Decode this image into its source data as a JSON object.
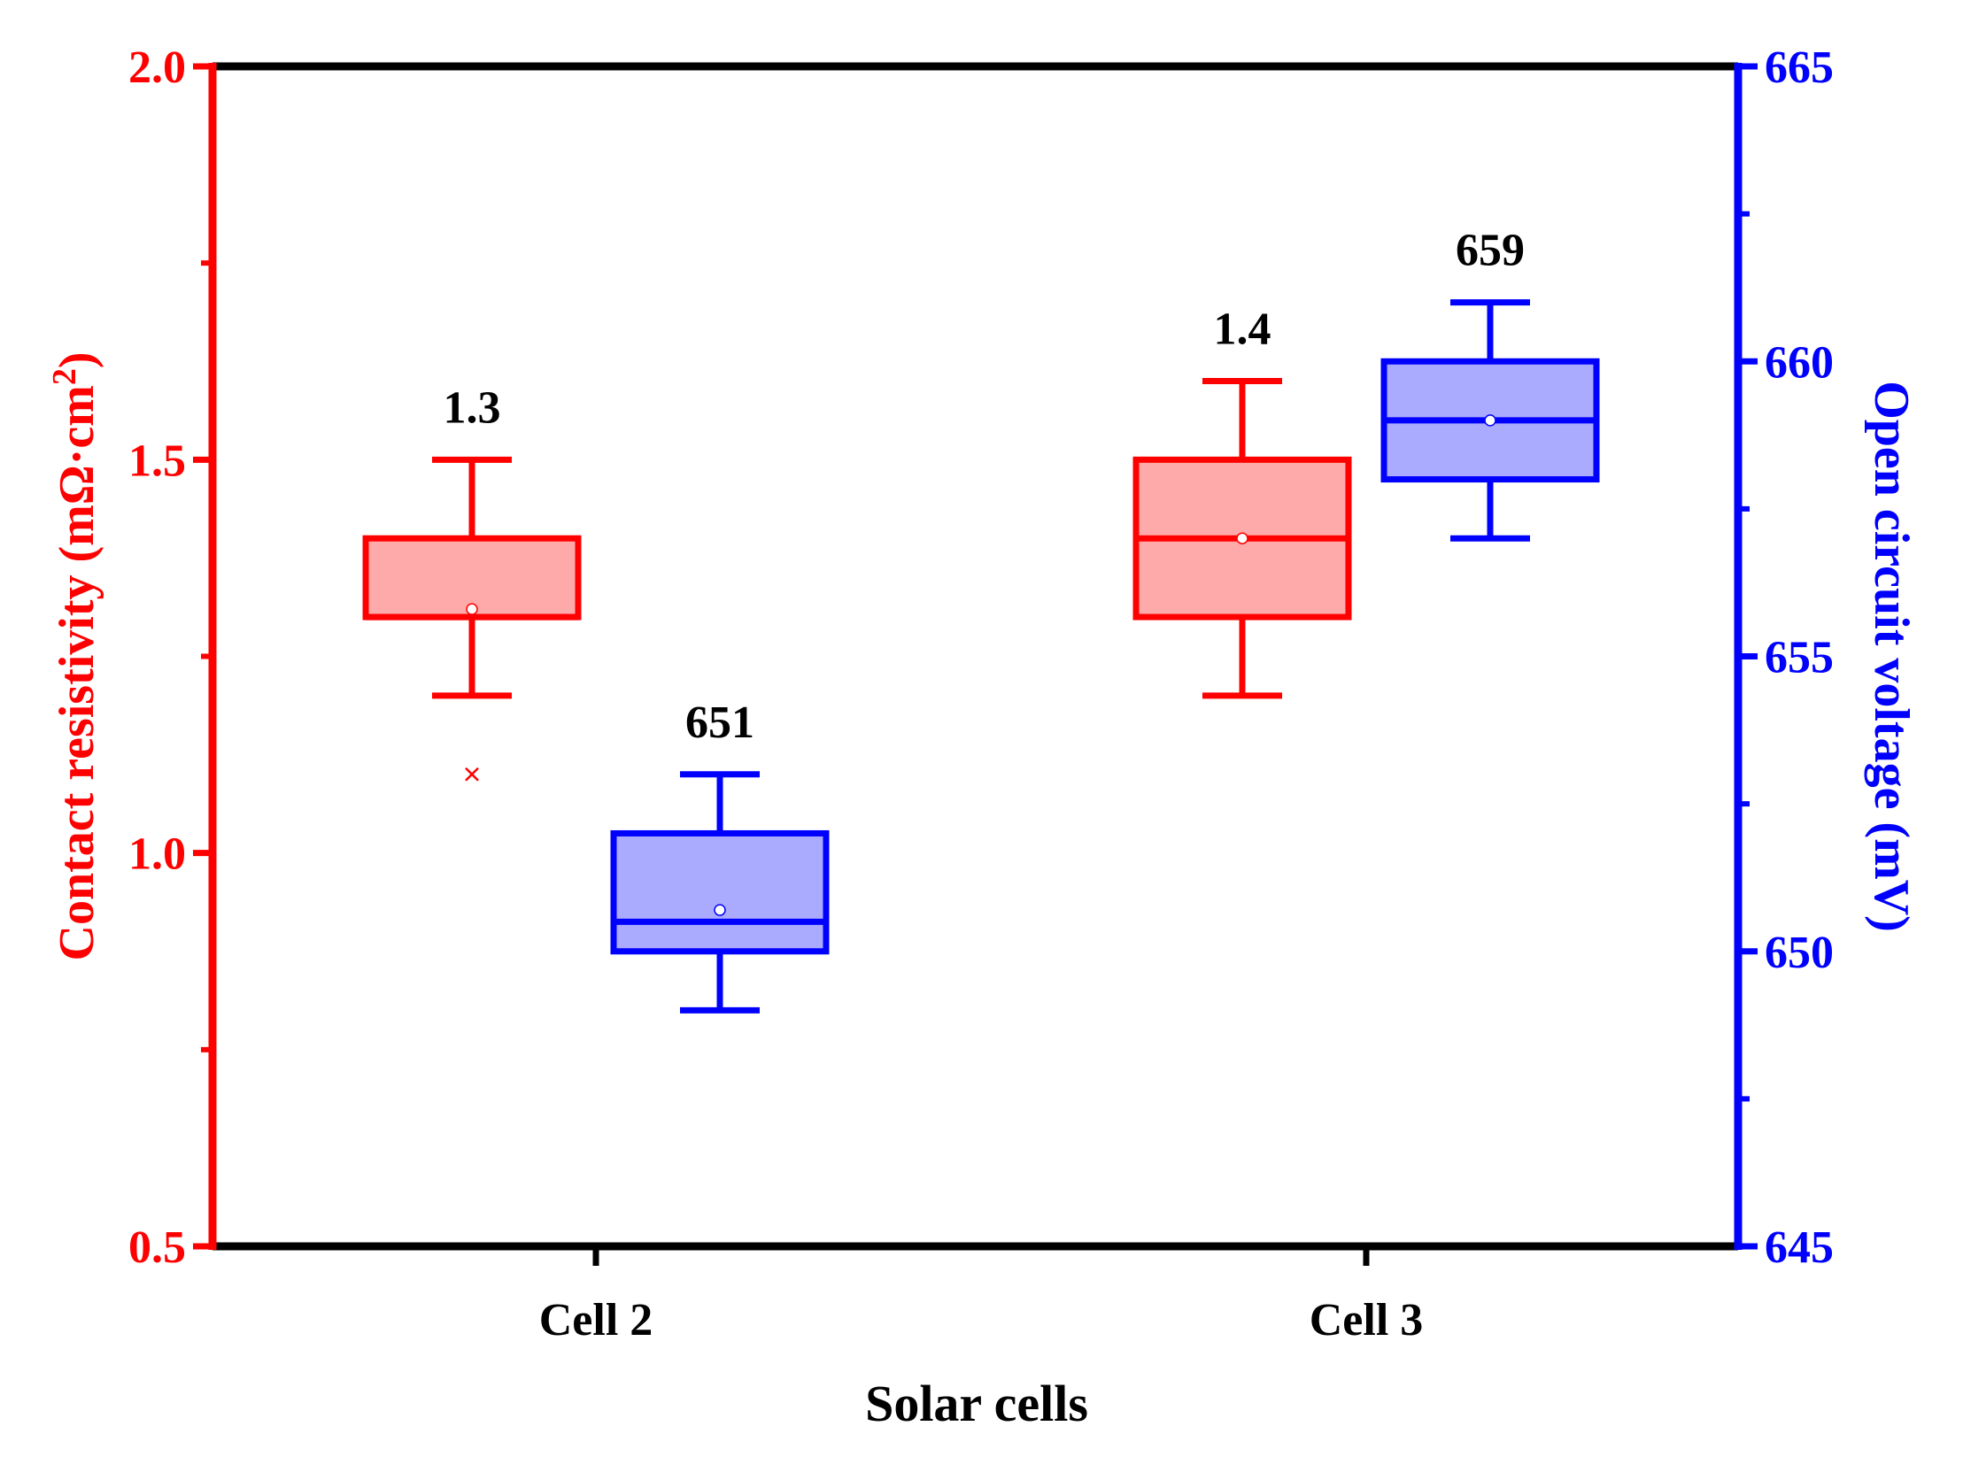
{
  "chart_data": {
    "type": "box",
    "title": "",
    "xlabel": "Solar cells",
    "categories": [
      "Cell 2",
      "Cell 3"
    ],
    "axes": {
      "left": {
        "label": "Contact resistivity (mΩ·cm",
        "label_superscript": "2",
        "label_close": ")",
        "range": [
          0.5,
          2.0
        ],
        "ticks": [
          0.5,
          1.0,
          1.5,
          2.0
        ],
        "tick_labels": [
          "0.5",
          "1.0",
          "1.5",
          "2.0"
        ],
        "minor_ticks": [
          0.75,
          1.25,
          1.75
        ],
        "color": "#ff0000"
      },
      "right": {
        "label": "Open circuit voltage (mV)",
        "range": [
          645,
          665
        ],
        "ticks": [
          645,
          650,
          655,
          660,
          665
        ],
        "tick_labels": [
          "645",
          "650",
          "655",
          "660",
          "665"
        ],
        "minor_ticks": [
          647.5,
          652.5,
          657.5,
          662.5
        ],
        "color": "#0000ff"
      }
    },
    "series": [
      {
        "name": "Contact resistivity",
        "axis": "left",
        "color": "#ff0000",
        "fill": "#ffaaaa",
        "boxes": [
          {
            "category": "Cell 2",
            "whisker_low": 1.2,
            "q1": 1.3,
            "median": 1.3,
            "q3": 1.4,
            "whisker_high": 1.5,
            "mean": 1.31,
            "outliers": [
              1.1
            ],
            "annotation": "1.3"
          },
          {
            "category": "Cell 3",
            "whisker_low": 1.2,
            "q1": 1.3,
            "median": 1.4,
            "q3": 1.5,
            "whisker_high": 1.6,
            "mean": 1.4,
            "outliers": [],
            "annotation": "1.4"
          }
        ]
      },
      {
        "name": "Open circuit voltage",
        "axis": "right",
        "color": "#0000ff",
        "fill": "#aaaaff",
        "boxes": [
          {
            "category": "Cell 2",
            "whisker_low": 649,
            "q1": 650,
            "median": 650.5,
            "q3": 652,
            "whisker_high": 653,
            "mean": 650.7,
            "outliers": [],
            "annotation": "651"
          },
          {
            "category": "Cell 3",
            "whisker_low": 657,
            "q1": 658,
            "median": 659,
            "q3": 660,
            "whisker_high": 661,
            "mean": 659,
            "outliers": [],
            "annotation": "659"
          }
        ]
      }
    ],
    "grid": false,
    "legend": "none"
  }
}
